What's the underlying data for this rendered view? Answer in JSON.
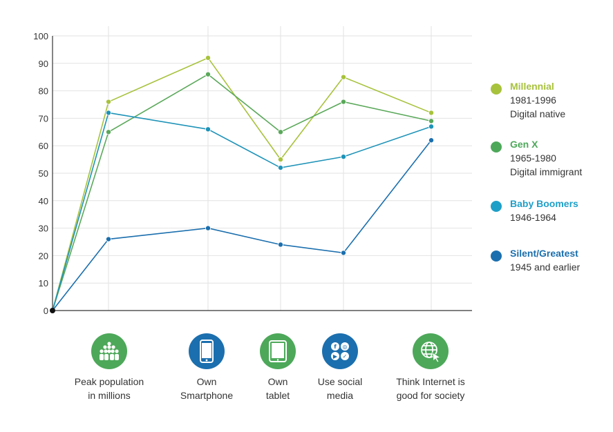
{
  "chart_data": {
    "type": "line",
    "categories": [
      "",
      "Peak population in millions",
      "Own Smartphone",
      "Own tablet",
      "Use social media",
      "Think Internet is good for society"
    ],
    "y_ticks": [
      "0",
      "10",
      "20",
      "30",
      "40",
      "50",
      "60",
      "70",
      "80",
      "90",
      "100"
    ],
    "ylim": [
      0,
      100
    ],
    "grid": true,
    "legend_position": "right",
    "series": [
      {
        "name": "Millennial",
        "years": "1981-1996",
        "note": "Digital native",
        "color": "#a7c23c",
        "values": [
          0,
          76,
          92,
          55,
          85,
          72
        ]
      },
      {
        "name": "Gen X",
        "years": "1965-1980",
        "note": "Digital immigrant",
        "color": "#5aa85a",
        "values": [
          0,
          65,
          86,
          65,
          76,
          69
        ]
      },
      {
        "name": "Baby Boomers",
        "years": "1946-1964",
        "note": "",
        "color": "#1e93b8",
        "values": [
          0,
          72,
          66,
          52,
          56,
          67
        ]
      },
      {
        "name": "Silent/Greatest",
        "years": "1945 and earlier",
        "note": "",
        "color": "#1b6fae",
        "values": [
          0,
          26,
          30,
          24,
          21,
          62
        ]
      }
    ]
  },
  "categories_panel": [
    {
      "icon": "people-pyramid-icon",
      "label": "Peak population\nin millions",
      "bg": "#4da85a"
    },
    {
      "icon": "smartphone-icon",
      "label": "Own\nSmartphone",
      "bg": "#1b6fae"
    },
    {
      "icon": "tablet-icon",
      "label": "Own\ntablet",
      "bg": "#4da85a"
    },
    {
      "icon": "social-media-icon",
      "label": "Use social\nmedia",
      "bg": "#1b6fae"
    },
    {
      "icon": "globe-cursor-icon",
      "label": "Think Internet is\ngood for society",
      "bg": "#4da85a"
    }
  ]
}
